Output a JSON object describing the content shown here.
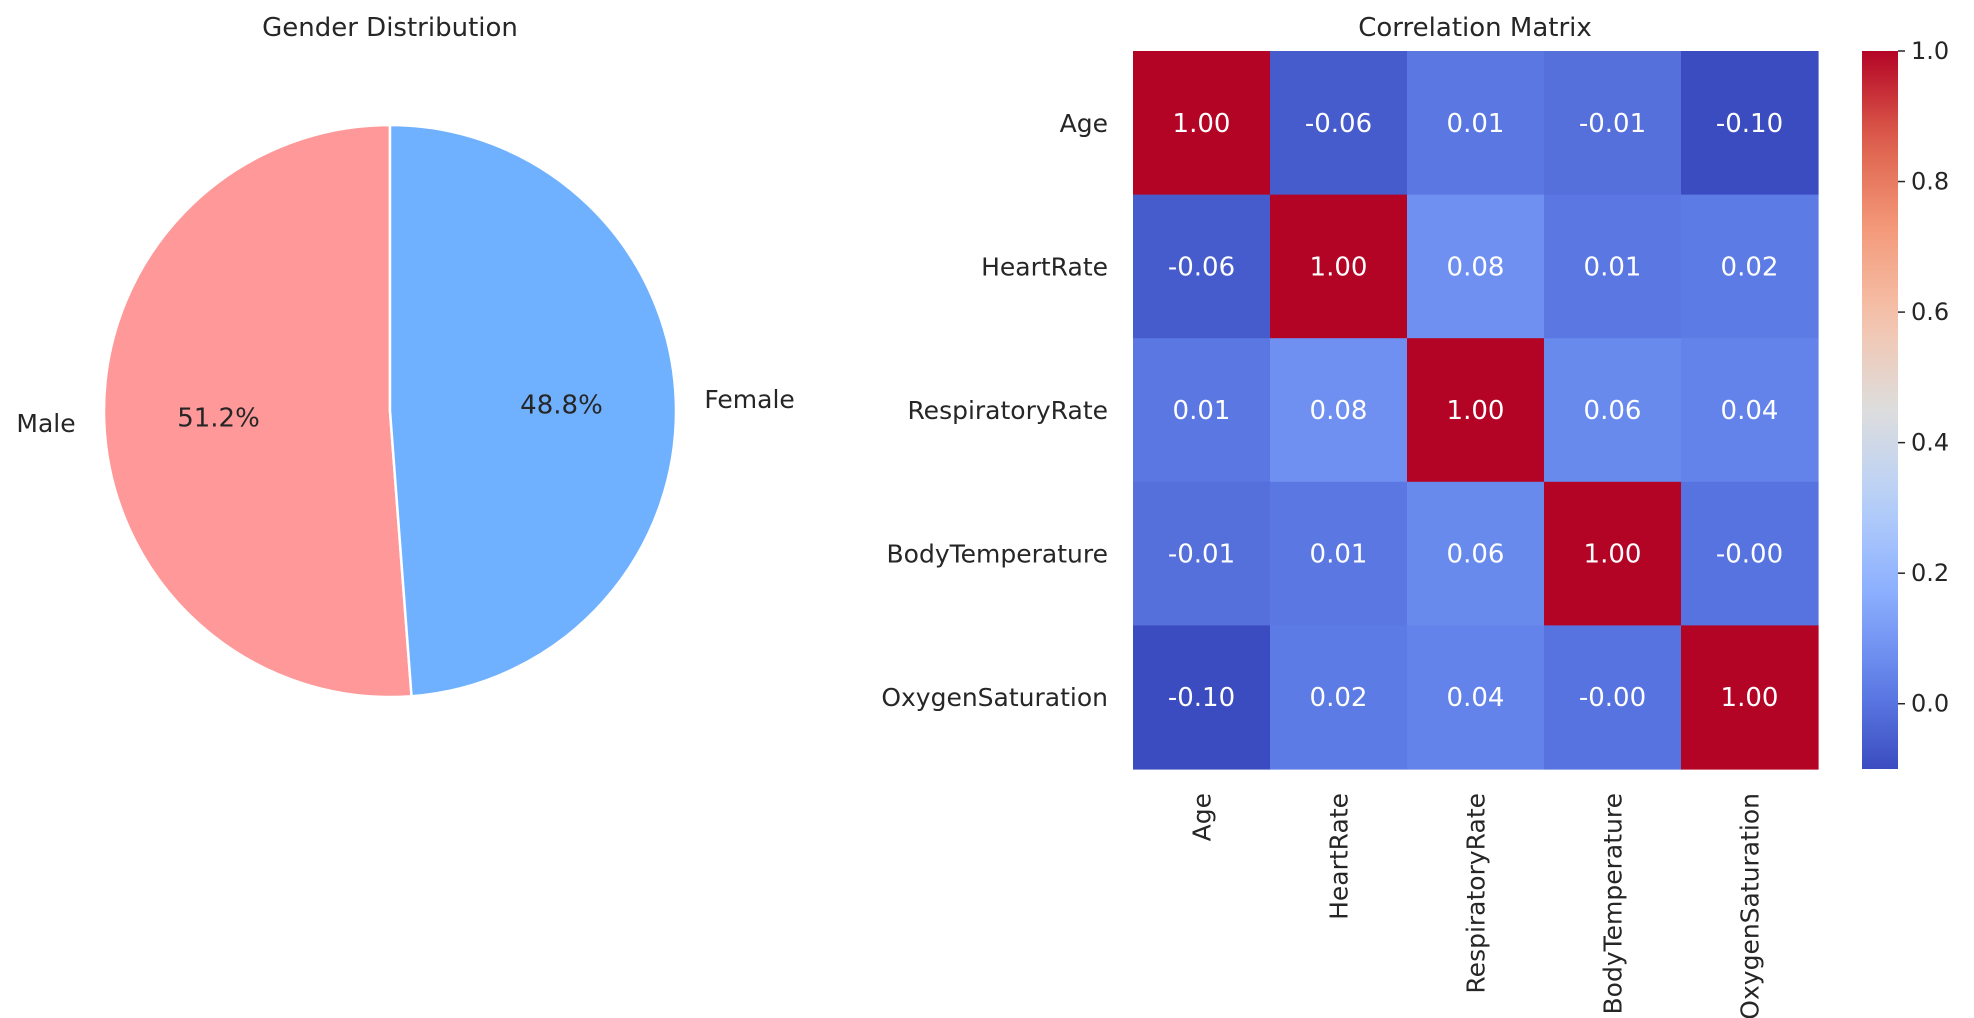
{
  "chart_data": [
    {
      "type": "pie",
      "title": "Gender Distribution",
      "categories": [
        "Male",
        "Female"
      ],
      "values": [
        51.2,
        48.8
      ],
      "value_labels": [
        "51.2%",
        "48.8%"
      ],
      "colors": [
        "#ff9999",
        "#6fb1ff"
      ],
      "start_angle_deg": 90,
      "direction": "counterclockwise"
    },
    {
      "type": "heatmap",
      "title": "Correlation Matrix",
      "labels": [
        "Age",
        "HeartRate",
        "RespiratoryRate",
        "BodyTemperature",
        "OxygenSaturation"
      ],
      "values": [
        [
          1.0,
          -0.06,
          0.01,
          -0.01,
          -0.1
        ],
        [
          -0.06,
          1.0,
          0.08,
          0.01,
          0.02
        ],
        [
          0.01,
          0.08,
          1.0,
          0.06,
          0.04
        ],
        [
          -0.01,
          0.01,
          0.06,
          1.0,
          -0.0
        ],
        [
          -0.1,
          0.02,
          0.04,
          -0.0,
          1.0
        ]
      ],
      "value_labels": [
        [
          "1.00",
          "-0.06",
          "0.01",
          "-0.01",
          "-0.10"
        ],
        [
          "-0.06",
          "1.00",
          "0.08",
          "0.01",
          "0.02"
        ],
        [
          "0.01",
          "0.08",
          "1.00",
          "0.06",
          "0.04"
        ],
        [
          "-0.01",
          "0.01",
          "0.06",
          "1.00",
          "-0.00"
        ],
        [
          "-0.10",
          "0.02",
          "0.04",
          "-0.00",
          "1.00"
        ]
      ],
      "colormap": "coolwarm",
      "colorbar": {
        "range": [
          -0.1,
          1.0
        ],
        "ticks": [
          0.0,
          0.2,
          0.4,
          0.6,
          0.8,
          1.0
        ],
        "tick_labels": [
          "0.0",
          "0.2",
          "0.4",
          "0.6",
          "0.8",
          "1.0"
        ]
      }
    }
  ]
}
